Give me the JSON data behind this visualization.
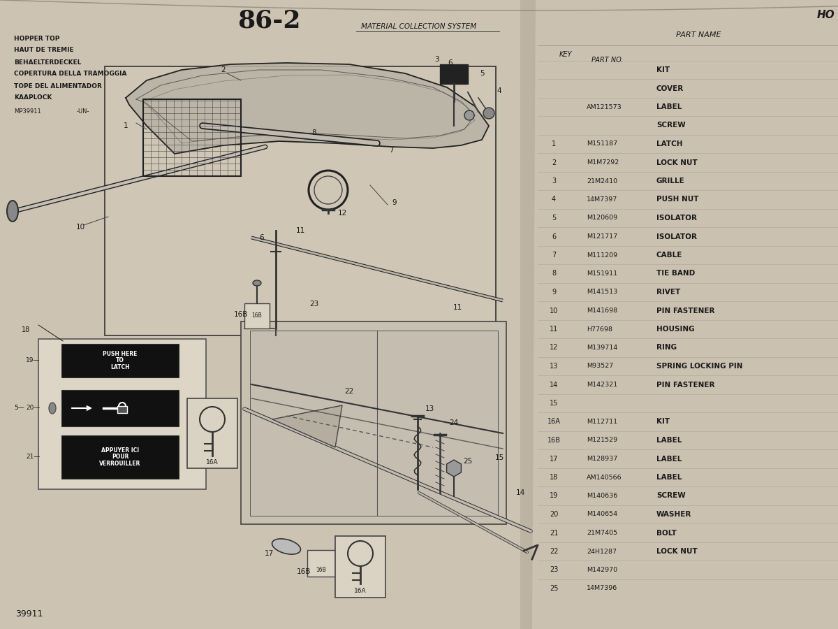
{
  "page_number": "86-2",
  "section_title": "MATERIAL COLLECTION SYSTEM",
  "right_header": "HO",
  "multilang_titles": [
    "HOPPER TOP",
    "HAUT DE TREMIE",
    "BEHAELTERDECKEL",
    "COPERTURA DELLA TRAMOGGIA",
    "TOPE DEL ALIMENTADOR",
    "KAAPLOCK"
  ],
  "doc_number": "MP39911",
  "doc_suffix": "-UN-",
  "footer_number": "39911",
  "bg_warm": "#c9bfaf",
  "left_page_color": "#ccc2b2",
  "right_page_color": "#cdc3b3",
  "diagram_border_color": "#2a2a2a",
  "text_color": "#1a1a1a",
  "parts_list": [
    {
      "key": "",
      "part_no": "",
      "name": "KIT"
    },
    {
      "key": "",
      "part_no": "",
      "name": "COVER"
    },
    {
      "key": "",
      "part_no": "AM121573",
      "name": "LABEL"
    },
    {
      "key": "",
      "part_no": "",
      "name": "SCREW"
    },
    {
      "key": "1",
      "part_no": "M151187",
      "name": "LATCH"
    },
    {
      "key": "2",
      "part_no": "M1M7292",
      "name": "LOCK NUT"
    },
    {
      "key": "3",
      "part_no": "21M2410",
      "name": "GRILLE"
    },
    {
      "key": "4",
      "part_no": "14M7397",
      "name": "PUSH NUT"
    },
    {
      "key": "5",
      "part_no": "M120609",
      "name": "ISOLATOR"
    },
    {
      "key": "6",
      "part_no": "M121717",
      "name": "ISOLATOR"
    },
    {
      "key": "7",
      "part_no": "M111209",
      "name": "CABLE"
    },
    {
      "key": "8",
      "part_no": "M151911",
      "name": "TIE BAND"
    },
    {
      "key": "9",
      "part_no": "M141513",
      "name": "RIVET"
    },
    {
      "key": "10",
      "part_no": "M141698",
      "name": "PIN FASTENER"
    },
    {
      "key": "11",
      "part_no": "H77698",
      "name": "HOUSING"
    },
    {
      "key": "12",
      "part_no": "M139714",
      "name": "RING"
    },
    {
      "key": "13",
      "part_no": "M93527",
      "name": "SPRING LOCKING PIN"
    },
    {
      "key": "14",
      "part_no": "M142321",
      "name": "PIN FASTENER"
    },
    {
      "key": "15",
      "part_no": "",
      "name": ""
    },
    {
      "key": "16A",
      "part_no": "M112711",
      "name": "KIT"
    },
    {
      "key": "16B",
      "part_no": "M121529",
      "name": "LABEL"
    },
    {
      "key": "17",
      "part_no": "M128937",
      "name": "LABEL"
    },
    {
      "key": "18",
      "part_no": "AM140566",
      "name": "LABEL"
    },
    {
      "key": "19",
      "part_no": "M140636",
      "name": "SCREW"
    },
    {
      "key": "20",
      "part_no": "M140654",
      "name": "WASHER"
    },
    {
      "key": "21",
      "part_no": "21M7405",
      "name": "BOLT"
    },
    {
      "key": "22",
      "part_no": "24H1287",
      "name": "LOCK NUT"
    },
    {
      "key": "23",
      "part_no": "M142970",
      "name": ""
    },
    {
      "key": "25",
      "part_no": "14M7396",
      "name": ""
    }
  ]
}
